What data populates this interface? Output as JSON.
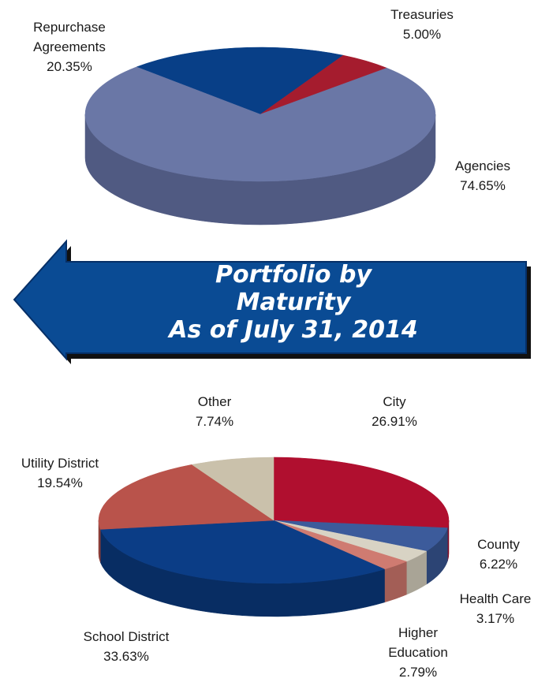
{
  "chart_data": [
    {
      "type": "pie3d",
      "categories": [
        "Repurchase Agreements",
        "Treasuries",
        "Agencies"
      ],
      "values": [
        20.35,
        5.0,
        74.65
      ],
      "value_labels": [
        "20.35%",
        "5.00%",
        "74.65%"
      ],
      "colors": [
        "#083f87",
        "#a51c2e",
        "#6a77a6"
      ],
      "side_colors": [
        "#062f66",
        "#7c1422",
        "#505a82"
      ]
    },
    {
      "type": "pie3d",
      "categories": [
        "City",
        "County",
        "Health Care",
        "Higher Education",
        "School District",
        "Utility District",
        "Other"
      ],
      "values": [
        26.91,
        6.22,
        3.17,
        2.79,
        33.63,
        19.54,
        7.74
      ],
      "value_labels": [
        "26.91%",
        "6.22%",
        "3.17%",
        "2.79%",
        "33.63%",
        "19.54%",
        "7.74%"
      ],
      "colors": [
        "#b00f2f",
        "#3c5b9b",
        "#d8d3c4",
        "#cf7b71",
        "#0b3d86",
        "#b9534b",
        "#cac1ab"
      ],
      "side_colors": [
        "#840b23",
        "#2c4474",
        "#a9a496",
        "#a35e56",
        "#082d63",
        "#8c3e38",
        "#9c9584"
      ]
    }
  ],
  "banner": {
    "lines": [
      "Portfolio by",
      "Maturity",
      "As of July 31, 2014"
    ]
  }
}
